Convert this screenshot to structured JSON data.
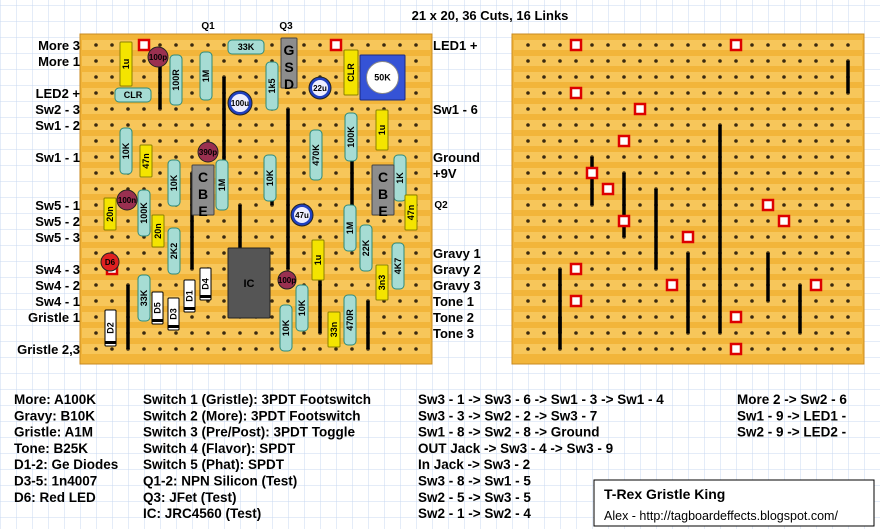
{
  "header": {
    "title": "21 x 20, 36 Cuts, 16 Links"
  },
  "board_labels": {
    "left": [
      "More 3",
      "More 1",
      "LED2 +",
      "Sw2 - 3",
      "Sw1 - 2",
      "Sw1 - 1",
      "Sw5 - 1",
      "Sw5 - 2",
      "Sw5 - 3",
      "Sw4 - 3",
      "Sw4 - 2",
      "Sw4 - 1",
      "Gristle 1",
      "Gristle 2,3"
    ],
    "right": [
      "LED1 +",
      "Sw1 - 6",
      "Ground",
      "+9V",
      "Gravy 1",
      "Gravy 2",
      "Gravy 3",
      "Tone 1",
      "Tone 2",
      "Tone 3"
    ]
  },
  "components": [
    "Q1",
    "Q3",
    "33K",
    "1u",
    "100p",
    "100R",
    "1M",
    "100u",
    "1k5",
    "GSD",
    "22u",
    "CLR",
    "50K",
    "CLR",
    "10K",
    "47n",
    "390p",
    "CBE",
    "1M",
    "10K",
    "10K",
    "470K",
    "100K",
    "1u",
    "1K",
    "CBE",
    "100n",
    "20n",
    "100K",
    "20n",
    "47u",
    "1M",
    "47n",
    "Q2",
    "2K2",
    "22K",
    "IC",
    "D6",
    "1u",
    "4K7",
    "100p",
    "3n3",
    "33K",
    "D1",
    "D4",
    "10K",
    "D5",
    "D3",
    "D2",
    "10K",
    "470R",
    "33n"
  ],
  "parts_list": [
    "More: A100K",
    "Gravy: B10K",
    "Gristle: A1M",
    "Tone: B25K",
    "D1-2: Ge Diodes",
    "D3-5: 1n4007",
    "D6: Red LED"
  ],
  "switches": [
    "Switch 1 (Gristle): 3PDT Footswitch",
    "Switch 2 (More): 3PDT Footswitch",
    "Switch 3 (Pre/Post): 3PDT Toggle",
    "Switch 4 (Flavor): SPDT",
    "Switch 5 (Phat): SPDT",
    "Q1-2: NPN Silicon (Test)",
    "Q3: JFet (Test)",
    "IC: JRC4560 (Test)"
  ],
  "wiring": [
    "Sw3 - 1 -> Sw3 - 6 -> Sw1 - 3 -> Sw1 - 4",
    "Sw3 - 3 -> Sw2 - 2 -> Sw3 - 7",
    "Sw1 - 8 -> Sw2 - 8 -> Ground",
    "OUT Jack -> Sw3 - 4 -> Sw3 - 9",
    "In Jack -> Sw3 - 2",
    "Sw3 - 8 -> Sw1 - 5",
    "Sw2 - 5 -> Sw3 - 5",
    "Sw2 - 1 -> Sw2 - 4"
  ],
  "wiring_extra": [
    "More 2 -> Sw2 - 6",
    "Sw1 - 9 -> LED1 -",
    "Sw2 - 9 -> LED2 -"
  ],
  "credit": {
    "title": "T-Rex Gristle King",
    "url": "Alex - http://tagboardeffects.blogspot.com/"
  }
}
